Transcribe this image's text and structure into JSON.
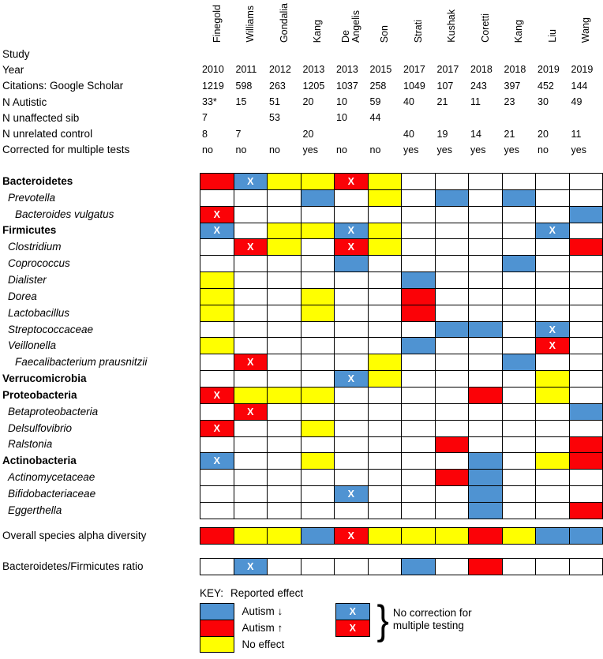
{
  "header": {
    "studies_display": [
      "Finegold",
      "Williams",
      "Gondalia",
      "Kang",
      "De\nAngelis",
      "Son",
      "Strati",
      "Kushak",
      "Coretti",
      "Kang",
      "Liu",
      "Wang"
    ]
  },
  "meta_rows": [
    {
      "label": "Study",
      "values": [
        "",
        "",
        "",
        "",
        "",
        "",
        "",
        "",
        "",
        "",
        "",
        ""
      ]
    },
    {
      "label": "Year",
      "values": [
        "2010",
        "2011",
        "2012",
        "2013",
        "2013",
        "2015",
        "2017",
        "2017",
        "2018",
        "2018",
        "2019",
        "2019"
      ]
    },
    {
      "label": "Citations: Google Scholar",
      "values": [
        "1219",
        "598",
        "263",
        "1205",
        "1037",
        "258",
        "1049",
        "107",
        "243",
        "397",
        "452",
        "144"
      ]
    },
    {
      "label": "N Autistic",
      "values": [
        "33*",
        "15",
        "51",
        "20",
        "10",
        "59",
        "40",
        "21",
        "11",
        "23",
        "30",
        "49"
      ]
    },
    {
      "label": "N unaffected sib",
      "values": [
        "7",
        "",
        "53",
        "",
        "10",
        "44",
        "",
        "",
        "",
        "",
        "",
        ""
      ]
    },
    {
      "label": "N unrelated control",
      "values": [
        "8",
        "7",
        "",
        "20",
        "",
        "",
        "40",
        "19",
        "14",
        "21",
        "20",
        "11"
      ]
    },
    {
      "label": "Corrected for multiple tests",
      "values": [
        "no",
        "no",
        "no",
        "yes",
        "no",
        "no",
        "yes",
        "yes",
        "yes",
        "yes",
        "no",
        "yes"
      ]
    }
  ],
  "chart_data": {
    "type": "heatmap",
    "columns": [
      "Finegold 2010",
      "Williams 2011",
      "Gondalia 2012",
      "Kang 2013",
      "De Angelis 2013",
      "Son 2015",
      "Strati 2017",
      "Kushak 2017",
      "Coretti 2018",
      "Kang 2018",
      "Liu 2019",
      "Wang 2019"
    ],
    "cell_code_meaning": {
      "B": "autism decreased (blue)",
      "R": "autism increased (red)",
      "Y": "no effect (yellow)",
      "": "not reported (white)",
      "X_suffix": "no correction for multiple testing"
    },
    "rows": [
      {
        "label": "Bacteroidetes",
        "style": "bold",
        "cells": [
          "R",
          "BX",
          "Y",
          "Y",
          "RX",
          "Y",
          "",
          "",
          "",
          "",
          "",
          ""
        ]
      },
      {
        "label": "Prevotella",
        "style": "italic",
        "cells": [
          "",
          "",
          "",
          "B",
          "",
          "Y",
          "",
          "B",
          "",
          "B",
          "",
          ""
        ]
      },
      {
        "label": "Bacteroides vulgatus",
        "style": "italic2",
        "cells": [
          "RX",
          "",
          "",
          "",
          "",
          "",
          "",
          "",
          "",
          "",
          "",
          "B"
        ]
      },
      {
        "label": "Firmicutes",
        "style": "bold",
        "cells": [
          "BX",
          "",
          "Y",
          "Y",
          "BX",
          "Y",
          "",
          "",
          "",
          "",
          "BX",
          ""
        ]
      },
      {
        "label": "Clostridium",
        "style": "italic",
        "cells": [
          "",
          "RX",
          "Y",
          "",
          "RX",
          "Y",
          "",
          "",
          "",
          "",
          "",
          "R"
        ]
      },
      {
        "label": "Coprococcus",
        "style": "italic",
        "cells": [
          "",
          "",
          "",
          "",
          "B",
          "",
          "",
          "",
          "",
          "B",
          "",
          ""
        ]
      },
      {
        "label": "Dialister",
        "style": "italic",
        "cells": [
          "Y",
          "",
          "",
          "",
          "",
          "",
          "B",
          "",
          "",
          "",
          "",
          ""
        ]
      },
      {
        "label": "Dorea",
        "style": "italic",
        "cells": [
          "Y",
          "",
          "",
          "Y",
          "",
          "",
          "R",
          "",
          "",
          "",
          "",
          ""
        ]
      },
      {
        "label": "Lactobacillus",
        "style": "italic",
        "cells": [
          "Y",
          "",
          "",
          "Y",
          "",
          "",
          "R",
          "",
          "",
          "",
          "",
          ""
        ]
      },
      {
        "label": "Streptococcaceae",
        "style": "italic",
        "cells": [
          "",
          "",
          "",
          "",
          "",
          "",
          "",
          "B",
          "B",
          "",
          "BX",
          ""
        ]
      },
      {
        "label": "Veillonella",
        "style": "italic",
        "cells": [
          "Y",
          "",
          "",
          "",
          "",
          "",
          "B",
          "",
          "",
          "",
          "RX",
          ""
        ]
      },
      {
        "label": "Faecalibacterium prausnitzii",
        "style": "italic2",
        "cells": [
          "",
          "RX",
          "",
          "",
          "",
          "Y",
          "",
          "",
          "",
          "B",
          "",
          ""
        ]
      },
      {
        "label": "Verrucomicrobia",
        "style": "bold",
        "cells": [
          "",
          "",
          "",
          "",
          "BX",
          "Y",
          "",
          "",
          "",
          "",
          "Y",
          ""
        ]
      },
      {
        "label": "Proteobacteria",
        "style": "bold",
        "cells": [
          "RX",
          "Y",
          "Y",
          "Y",
          "",
          "",
          "",
          "",
          "R",
          "",
          "Y",
          ""
        ]
      },
      {
        "label": "Betaproteobacteria",
        "style": "italic",
        "cells": [
          "",
          "RX",
          "",
          "",
          "",
          "",
          "",
          "",
          "",
          "",
          "",
          "B"
        ]
      },
      {
        "label": "Delsulfovibrio",
        "style": "italic",
        "cells": [
          "RX",
          "",
          "",
          "Y",
          "",
          "",
          "",
          "",
          "",
          "",
          "",
          ""
        ]
      },
      {
        "label": "Ralstonia",
        "style": "italic",
        "cells": [
          "",
          "",
          "",
          "",
          "",
          "",
          "",
          "R",
          "",
          "",
          "",
          "R"
        ]
      },
      {
        "label": "Actinobacteria",
        "style": "bold",
        "cells": [
          "BX",
          "",
          "",
          "Y",
          "",
          "",
          "",
          "",
          "B",
          "",
          "Y",
          "R"
        ]
      },
      {
        "label": "Actinomycetaceae",
        "style": "italic",
        "cells": [
          "",
          "",
          "",
          "",
          "",
          "",
          "",
          "R",
          "B",
          "",
          "",
          ""
        ]
      },
      {
        "label": "Bifidobacteriaceae",
        "style": "italic",
        "cells": [
          "",
          "",
          "",
          "",
          "BX",
          "",
          "",
          "",
          "B",
          "",
          "",
          ""
        ]
      },
      {
        "label": "Eggerthella",
        "style": "italic",
        "cells": [
          "",
          "",
          "",
          "",
          "",
          "",
          "",
          "",
          "B",
          "",
          "",
          "R"
        ]
      }
    ],
    "extra_rows": [
      {
        "label": "Overall species alpha diversity",
        "style": "plain",
        "cells": [
          "R",
          "Y",
          "Y",
          "B",
          "RX",
          "Y",
          "Y",
          "Y",
          "R",
          "Y",
          "B",
          "B"
        ]
      },
      {
        "label": "Bacteroidetes/Firmicutes ratio",
        "style": "plain",
        "cells": [
          "",
          "BX",
          "",
          "",
          "",
          "",
          "B",
          "",
          "R",
          "",
          "",
          ""
        ]
      }
    ]
  },
  "key": {
    "title_prefix": "KEY:",
    "title": "Reported effect",
    "items": [
      {
        "code": "B",
        "label": "Autism ↓"
      },
      {
        "code": "R",
        "label": "Autism ↑"
      },
      {
        "code": "Y",
        "label": "No effect"
      }
    ],
    "x_items": [
      "BX",
      "RX"
    ],
    "brace": "}",
    "note_line1": "No correction for",
    "note_line2": "multiple testing"
  },
  "colors": {
    "autism_down": "#4f93d2",
    "autism_up": "#fb0207",
    "no_effect": "#ffff00",
    "not_reported": "#ffffff",
    "grid_line": "#000000",
    "x_mark": "#ffffff"
  }
}
